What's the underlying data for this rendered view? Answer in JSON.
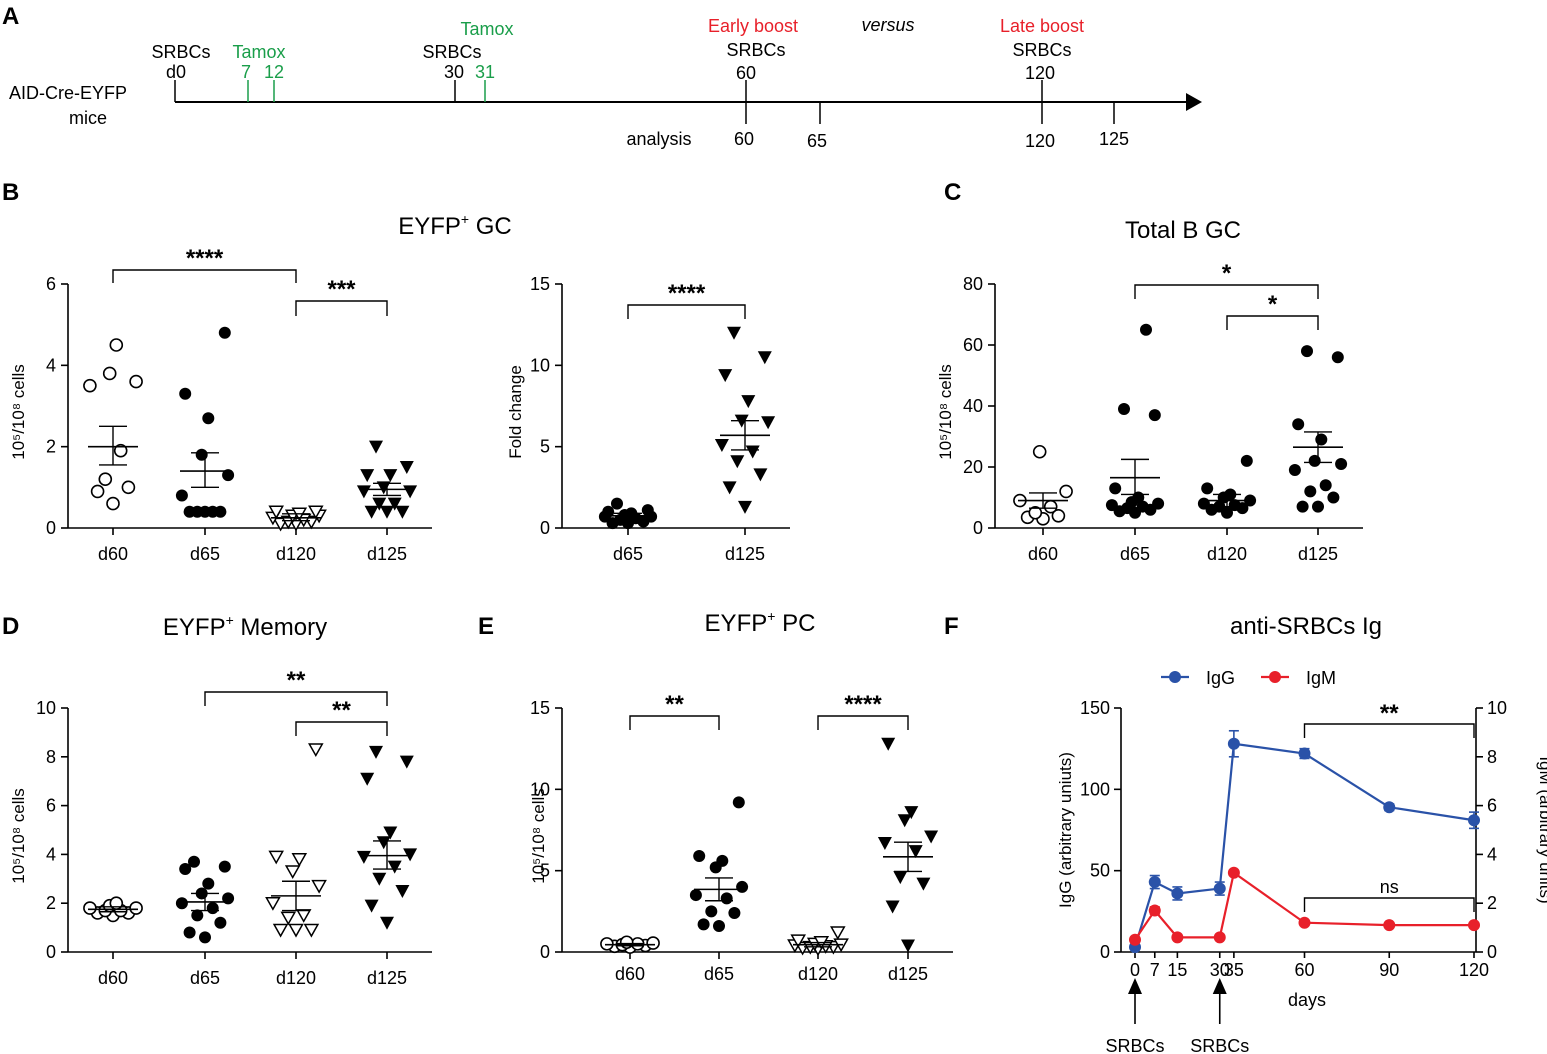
{
  "panel_labels": {
    "A": "A",
    "B": "B",
    "C": "C",
    "D": "D",
    "E": "E",
    "F": "F"
  },
  "timeline": {
    "mouse_line1": "AID-Cre-EYFP",
    "mouse_line2": "mice",
    "srbcs": "SRBCs",
    "tamox": "Tamox",
    "d0": "d0",
    "t7": "7",
    "t12": "12",
    "t30": "30",
    "t31": "31",
    "early_boost": "Early boost",
    "late_boost": "Late boost",
    "versus": "versus",
    "b60": "60",
    "b120": "120",
    "analysis": "analysis",
    "a60": "60",
    "a65": "65",
    "a120": "120",
    "a125": "125",
    "green": "#1a9e4a",
    "red": "#e8202a"
  },
  "chart_data": [
    {
      "id": "B1",
      "type": "scatter",
      "title": "EYFP",
      "title_sup": "+",
      "title_suffix": " GC",
      "ylabel": "10⁵/10⁸ cells",
      "categories": [
        "d60",
        "d65",
        "d120",
        "d125"
      ],
      "ylim": [
        0,
        6
      ],
      "yticks": [
        "0",
        "2",
        "4",
        "6"
      ],
      "markers": [
        "open-circle",
        "filled-circle",
        "open-triangle",
        "filled-triangle"
      ],
      "points": [
        [
          0.6,
          0.9,
          1.0,
          1.2,
          1.9,
          3.5,
          3.6,
          3.8,
          4.5
        ],
        [
          0.4,
          0.4,
          0.4,
          0.4,
          0.4,
          0.8,
          1.3,
          1.8,
          2.7,
          3.3,
          4.8
        ],
        [
          0.1,
          0.1,
          0.15,
          0.15,
          0.2,
          0.25,
          0.3,
          0.3,
          0.35,
          0.4,
          0.4
        ],
        [
          0.4,
          0.4,
          0.4,
          0.6,
          0.6,
          0.9,
          0.9,
          1.0,
          1.3,
          1.3,
          1.5,
          2.0
        ]
      ],
      "mean": [
        2.0,
        1.4,
        0.25,
        0.95
      ],
      "sem_low": [
        1.55,
        1.0,
        0.18,
        0.8
      ],
      "sem_high": [
        2.5,
        1.85,
        0.35,
        1.1
      ],
      "stars": [
        {
          "from": 0,
          "to": 2,
          "label": "****"
        },
        {
          "from": 2,
          "to": 3,
          "label": "***"
        }
      ]
    },
    {
      "id": "B2",
      "type": "scatter",
      "title": "",
      "ylabel": "Fold change",
      "categories": [
        "d65",
        "d125"
      ],
      "ylim": [
        0,
        15
      ],
      "yticks": [
        "0",
        "5",
        "10",
        "15"
      ],
      "markers": [
        "filled-circle",
        "filled-triangle"
      ],
      "points": [
        [
          0.3,
          0.3,
          0.4,
          0.5,
          0.6,
          0.7,
          0.7,
          0.8,
          0.9,
          1.0,
          1.1,
          1.5
        ],
        [
          1.3,
          2.5,
          3.3,
          4.1,
          4.7,
          5.1,
          6.5,
          6.6,
          7.8,
          9.4,
          10.5,
          12.0
        ]
      ],
      "mean": [
        0.75,
        5.7
      ],
      "sem_low": [
        0.6,
        4.8
      ],
      "sem_high": [
        0.9,
        6.6
      ],
      "stars": [
        {
          "from": 0,
          "to": 1,
          "label": "****"
        }
      ]
    },
    {
      "id": "C",
      "type": "scatter",
      "title": "Total B GC",
      "ylabel": "10⁵/10⁸ cells",
      "categories": [
        "d60",
        "d65",
        "d120",
        "d125"
      ],
      "ylim": [
        0,
        80
      ],
      "yticks": [
        "0",
        "20",
        "40",
        "60",
        "80"
      ],
      "markers": [
        "open-circle",
        "filled-circle",
        "filled-circle",
        "filled-circle"
      ],
      "points": [
        [
          3,
          3.5,
          4,
          5,
          7,
          9,
          12,
          25
        ],
        [
          5,
          5.5,
          6,
          6.5,
          7,
          7.5,
          8,
          8.5,
          10,
          13,
          37,
          39,
          65
        ],
        [
          5,
          6,
          6.5,
          7,
          7.5,
          8,
          9,
          10,
          11,
          13,
          22
        ],
        [
          7,
          7,
          10,
          12,
          14,
          19,
          21,
          22,
          29,
          34,
          56,
          58
        ]
      ],
      "mean": [
        9,
        16.5,
        9,
        26.5
      ],
      "sem_low": [
        6.5,
        11,
        7,
        21.5
      ],
      "sem_high": [
        11.5,
        22.5,
        11,
        31.5
      ],
      "stars": [
        {
          "from": 1,
          "to": 3,
          "label": "*"
        },
        {
          "from": 2,
          "to": 3,
          "label": "*"
        }
      ]
    },
    {
      "id": "D",
      "type": "scatter",
      "title": "EYFP",
      "title_sup": "+",
      "title_suffix": " Memory",
      "ylabel": "10⁵/10⁸ cells",
      "categories": [
        "d60",
        "d65",
        "d120",
        "d125"
      ],
      "ylim": [
        0,
        10
      ],
      "yticks": [
        "0",
        "2",
        "4",
        "6",
        "8",
        "10"
      ],
      "markers": [
        "open-circle",
        "filled-circle",
        "open-triangle",
        "filled-triangle"
      ],
      "points": [
        [
          1.5,
          1.6,
          1.6,
          1.7,
          1.7,
          1.8,
          1.8,
          1.9,
          2.0
        ],
        [
          0.6,
          0.8,
          1.2,
          1.5,
          1.8,
          2.0,
          2.2,
          2.4,
          2.8,
          3.4,
          3.5,
          3.7
        ],
        [
          0.9,
          0.9,
          0.9,
          1.4,
          1.5,
          2.0,
          2.7,
          3.3,
          3.8,
          3.9,
          8.3
        ],
        [
          1.2,
          1.9,
          2.5,
          3.0,
          3.5,
          3.9,
          4.0,
          4.5,
          4.9,
          7.1,
          7.8,
          8.2
        ]
      ],
      "mean": [
        1.75,
        2.05,
        2.3,
        3.95
      ],
      "sem_low": [
        1.65,
        1.7,
        1.7,
        3.4
      ],
      "sem_high": [
        1.85,
        2.4,
        2.9,
        4.55
      ],
      "stars": [
        {
          "from": 1,
          "to": 3,
          "label": "**"
        },
        {
          "from": 2,
          "to": 3,
          "label": "**"
        }
      ]
    },
    {
      "id": "E",
      "type": "scatter",
      "title": "EYFP",
      "title_sup": "+",
      "title_suffix": " PC",
      "ylabel": "10⁵/10⁸ cells",
      "categories": [
        "d60",
        "d65",
        "d120",
        "d125"
      ],
      "ylim": [
        0,
        15
      ],
      "yticks": [
        "0",
        "5",
        "10",
        "15"
      ],
      "markers": [
        "open-circle",
        "filled-circle",
        "open-triangle",
        "filled-triangle"
      ],
      "points": [
        [
          0.3,
          0.35,
          0.4,
          0.45,
          0.5,
          0.5,
          0.55,
          0.6
        ],
        [
          1.6,
          1.7,
          2.4,
          2.5,
          3.3,
          3.5,
          4.0,
          5.2,
          5.6,
          5.9,
          9.2
        ],
        [
          0.2,
          0.25,
          0.3,
          0.3,
          0.35,
          0.4,
          0.45,
          0.5,
          0.6,
          0.7,
          1.2
        ],
        [
          0.4,
          2.8,
          4.2,
          4.6,
          6.2,
          6.7,
          7.1,
          8.1,
          8.6,
          12.8
        ]
      ],
      "mean": [
        0.45,
        3.85,
        0.45,
        5.85
      ],
      "sem_low": [
        0.38,
        3.15,
        0.32,
        4.95
      ],
      "sem_high": [
        0.52,
        4.55,
        0.58,
        6.75
      ],
      "stars": [
        {
          "from": 0,
          "to": 1,
          "label": "**"
        },
        {
          "from": 2,
          "to": 3,
          "label": "****"
        }
      ]
    },
    {
      "id": "F",
      "type": "line",
      "title": "anti-SRBCs Ig",
      "xlabel": "days",
      "ylabel_left": "IgG (arbitrary uniuts)",
      "ylabel_right": "IgM (arbitrary units)",
      "x_ticks": [
        "0",
        "7",
        "15",
        "30",
        "35",
        "60",
        "90",
        "120"
      ],
      "x": [
        0,
        7,
        15,
        30,
        35,
        60,
        90,
        120
      ],
      "ylim_left": [
        0,
        150
      ],
      "yticks_left": [
        "0",
        "50",
        "100",
        "150"
      ],
      "ylim_right": [
        0,
        10
      ],
      "yticks_right": [
        "0",
        "2",
        "4",
        "6",
        "8",
        "10"
      ],
      "series": [
        {
          "name": "IgG",
          "color": "#2a52a8",
          "axis": "left",
          "values": [
            3,
            43,
            36,
            39,
            128,
            122,
            89,
            81
          ],
          "err": [
            1,
            4,
            4,
            4,
            8,
            3,
            2,
            5
          ]
        },
        {
          "name": "IgM",
          "color": "#e8202a",
          "axis": "right",
          "values": [
            0.5,
            1.7,
            0.6,
            0.6,
            3.25,
            1.2,
            1.1,
            1.1
          ],
          "err": [
            0.1,
            0.15,
            0.08,
            0.08,
            0.1,
            0.05,
            0.05,
            0.1
          ]
        }
      ],
      "arrows": [
        "SRBCs",
        "SRBCs"
      ],
      "stars": [
        {
          "from": 60,
          "to": 120,
          "label": "**",
          "series": "IgG"
        },
        {
          "from": 60,
          "to": 120,
          "label": "ns",
          "series": "IgM"
        }
      ]
    }
  ]
}
